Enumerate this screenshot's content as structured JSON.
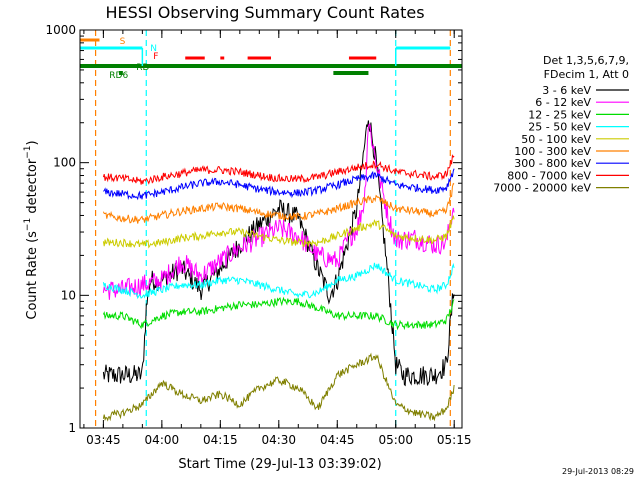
{
  "chart_data": {
    "type": "line",
    "title": "HESSI Observing Summary Count Rates",
    "xlabel": "Start Time (29-Jul-13 03:39:02)",
    "ylabel": "Count Rate (s⁻¹ detector⁻¹)",
    "ylabel_base": "Count Rate (s",
    "ylabel_exp1": "−1",
    "ylabel_mid": " detector",
    "ylabel_exp2": "−1",
    "ylabel_end": ")",
    "yscale": "log",
    "xlim": [
      "03:39",
      "05:17"
    ],
    "ylim": [
      1,
      1000
    ],
    "xticks": [
      "03:45",
      "04:00",
      "04:15",
      "04:30",
      "04:45",
      "05:00",
      "05:15"
    ],
    "yticks": [
      "1",
      "10",
      "100",
      "1000"
    ],
    "legend_header": [
      "Det 1,3,5,6,7,9,",
      "FDecim 1, Att 0"
    ],
    "legend_position": "right",
    "timestamp": "29-Jul-2013 08:29",
    "series": [
      {
        "name": "3 - 6 keV",
        "color": "#000000",
        "times": [
          "03:45",
          "03:47",
          "03:55",
          "03:56",
          "03:57",
          "04:00",
          "04:05",
          "04:10",
          "04:15",
          "04:20",
          "04:25",
          "04:30",
          "04:35",
          "04:40",
          "04:43",
          "04:45",
          "04:50",
          "04:53",
          "04:55",
          "04:58",
          "05:00",
          "05:02",
          "05:05",
          "05:10",
          "05:13",
          "05:15"
        ],
        "values": [
          2.5,
          2.5,
          2.5,
          8,
          13,
          13,
          16,
          11,
          16,
          24,
          34,
          45,
          38,
          16,
          10,
          13,
          45,
          230,
          100,
          14,
          3,
          2.5,
          2.5,
          2.5,
          3,
          12
        ]
      },
      {
        "name": "6 - 12 keV",
        "color": "#ff00ff",
        "times": [
          "03:45",
          "03:50",
          "03:55",
          "04:00",
          "04:05",
          "04:10",
          "04:15",
          "04:20",
          "04:25",
          "04:30",
          "04:35",
          "04:40",
          "04:45",
          "04:48",
          "04:50",
          "04:52",
          "04:53",
          "04:55",
          "04:58",
          "05:00",
          "05:05",
          "05:10",
          "05:13",
          "05:15"
        ],
        "values": [
          11,
          11,
          12,
          13,
          18,
          14,
          18,
          23,
          27,
          32,
          28,
          20,
          18,
          27,
          32,
          52,
          210,
          100,
          40,
          26,
          27,
          24,
          25,
          50
        ]
      },
      {
        "name": "12 - 25 keV",
        "color": "#00dd00",
        "times": [
          "03:45",
          "03:50",
          "03:55",
          "04:00",
          "04:05",
          "04:10",
          "04:15",
          "04:20",
          "04:25",
          "04:30",
          "04:35",
          "04:40",
          "04:45",
          "04:50",
          "04:55",
          "05:00",
          "05:05",
          "05:10",
          "05:13",
          "05:15"
        ],
        "values": [
          7,
          7,
          6,
          7,
          7.5,
          7.5,
          8,
          8.5,
          8.5,
          9,
          9,
          8,
          7,
          7,
          7,
          6,
          6,
          6,
          6.5,
          9
        ]
      },
      {
        "name": "25 - 50 keV",
        "color": "#00ffff",
        "times": [
          "03:45",
          "03:50",
          "03:55",
          "04:00",
          "04:05",
          "04:10",
          "04:15",
          "04:20",
          "04:25",
          "04:30",
          "04:35",
          "04:40",
          "04:45",
          "04:50",
          "04:55",
          "05:00",
          "05:05",
          "05:10",
          "05:13",
          "05:15"
        ],
        "values": [
          12,
          11,
          10,
          11,
          12,
          12,
          13,
          13,
          12,
          11,
          10,
          10.5,
          13,
          14,
          17,
          13,
          12,
          11,
          12,
          17
        ]
      },
      {
        "name": "50 - 100 keV",
        "color": "#cccc00",
        "times": [
          "03:45",
          "03:50",
          "03:55",
          "04:00",
          "04:05",
          "04:10",
          "04:15",
          "04:20",
          "04:25",
          "04:30",
          "04:35",
          "04:40",
          "04:45",
          "04:50",
          "04:55",
          "05:00",
          "05:05",
          "05:10",
          "05:13",
          "05:15"
        ],
        "values": [
          25,
          25,
          24,
          25,
          27,
          28,
          30,
          30,
          28,
          26,
          25,
          25,
          28,
          32,
          35,
          28,
          27,
          26,
          28,
          40
        ]
      },
      {
        "name": "100 - 300 keV",
        "color": "#ff8000",
        "times": [
          "03:45",
          "03:50",
          "03:55",
          "04:00",
          "04:05",
          "04:10",
          "04:15",
          "04:20",
          "04:25",
          "04:30",
          "04:35",
          "04:40",
          "04:45",
          "04:50",
          "04:55",
          "05:00",
          "05:05",
          "05:10",
          "05:13",
          "05:15"
        ],
        "values": [
          40,
          38,
          37,
          40,
          43,
          45,
          47,
          45,
          42,
          40,
          39,
          41,
          45,
          50,
          54,
          45,
          43,
          41,
          43,
          70
        ]
      },
      {
        "name": "300 - 800 keV",
        "color": "#0000ff",
        "times": [
          "03:45",
          "03:50",
          "03:55",
          "04:00",
          "04:05",
          "04:10",
          "04:15",
          "04:20",
          "04:25",
          "04:30",
          "04:35",
          "04:40",
          "04:45",
          "04:50",
          "04:55",
          "05:00",
          "05:05",
          "05:10",
          "05:13",
          "05:15"
        ],
        "values": [
          60,
          58,
          56,
          60,
          65,
          70,
          72,
          68,
          63,
          60,
          59,
          62,
          68,
          75,
          80,
          68,
          65,
          62,
          65,
          90
        ]
      },
      {
        "name": "800 - 7000 keV",
        "color": "#ff0000",
        "times": [
          "03:45",
          "03:50",
          "03:55",
          "04:00",
          "04:05",
          "04:10",
          "04:15",
          "04:20",
          "04:25",
          "04:30",
          "04:35",
          "04:40",
          "04:45",
          "04:50",
          "04:55",
          "05:00",
          "05:05",
          "05:10",
          "05:13",
          "05:15"
        ],
        "values": [
          78,
          76,
          72,
          78,
          83,
          88,
          88,
          85,
          80,
          76,
          75,
          78,
          85,
          92,
          98,
          85,
          82,
          78,
          82,
          115
        ]
      },
      {
        "name": "7000 - 20000 keV",
        "color": "#808000",
        "times": [
          "03:45",
          "03:50",
          "03:55",
          "04:00",
          "04:05",
          "04:10",
          "04:15",
          "04:20",
          "04:25",
          "04:30",
          "04:35",
          "04:40",
          "04:45",
          "04:50",
          "04:55",
          "05:00",
          "05:05",
          "05:10",
          "05:13",
          "05:15"
        ],
        "values": [
          1.2,
          1.3,
          1.5,
          2.2,
          1.8,
          1.6,
          1.8,
          1.5,
          2.0,
          2.3,
          2.0,
          1.4,
          2.5,
          3.0,
          3.5,
          1.5,
          1.3,
          1.2,
          1.4,
          2.0
        ]
      }
    ],
    "flag_labels": {
      "S": "S",
      "N": "N",
      "F": "F",
      "RD": "RD",
      "RD6": "RD6"
    },
    "flag_colors": {
      "S": "#ff8000",
      "N": "#00ffff",
      "F": "#ff0000",
      "RD": "#008000"
    },
    "flags": [
      {
        "flag": "S",
        "start": "03:39",
        "end": "03:44"
      },
      {
        "flag": "N",
        "start": "03:39",
        "end": "03:55"
      },
      {
        "flag": "N",
        "start": "05:00",
        "end": "05:14"
      },
      {
        "flag": "F",
        "start": "04:06",
        "end": "04:11"
      },
      {
        "flag": "F",
        "start": "04:15",
        "end": "04:16"
      },
      {
        "flag": "F",
        "start": "04:22",
        "end": "04:28"
      },
      {
        "flag": "F",
        "start": "04:48",
        "end": "04:55"
      },
      {
        "flag": "RD",
        "start": "03:39",
        "end": "05:17"
      },
      {
        "flag": "RD6",
        "start": "03:49",
        "end": "03:50"
      },
      {
        "flag": "RD6",
        "start": "04:44",
        "end": "04:53"
      }
    ],
    "vlines": [
      {
        "time": "03:43",
        "color": "#ff8000"
      },
      {
        "time": "05:14",
        "color": "#ff8000"
      },
      {
        "time": "03:56",
        "color": "#00ffff"
      },
      {
        "time": "05:00",
        "color": "#00ffff"
      }
    ]
  }
}
